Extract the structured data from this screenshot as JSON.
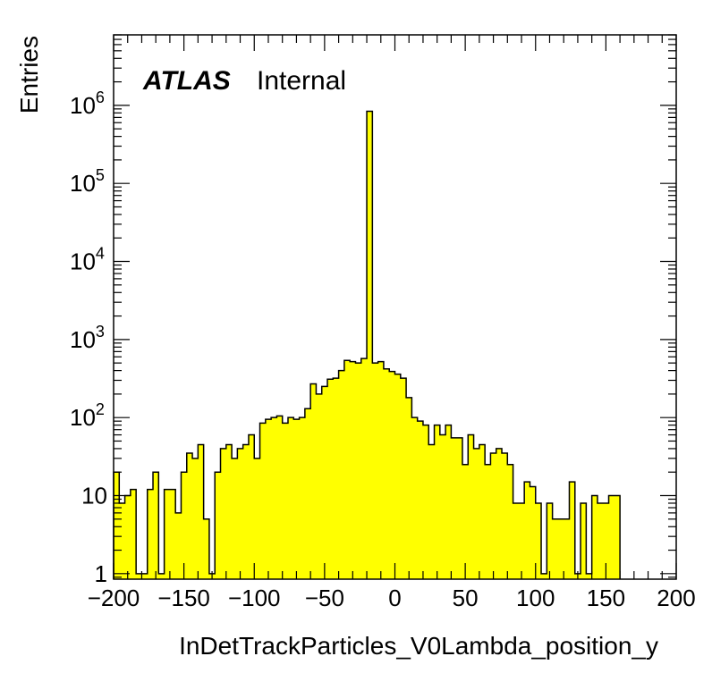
{
  "chart_data": {
    "type": "bar",
    "style": "step-histogram",
    "fill_color": "#ffff00",
    "line_color": "#000000",
    "xlabel": "InDetTrackParticles_V0Lambda_position_y",
    "ylabel": "Entries",
    "xlim": [
      -200,
      200
    ],
    "ylim": [
      0.85,
      8000000
    ],
    "yscale": "log",
    "x_ticks": [
      {
        "value": -200,
        "label": "−200"
      },
      {
        "value": -150,
        "label": "−150"
      },
      {
        "value": -100,
        "label": "−100"
      },
      {
        "value": -50,
        "label": "−50"
      },
      {
        "value": 0,
        "label": "0"
      },
      {
        "value": 50,
        "label": "50"
      },
      {
        "value": 100,
        "label": "100"
      },
      {
        "value": 150,
        "label": "150"
      },
      {
        "value": 200,
        "label": "200"
      }
    ],
    "y_ticks": [
      {
        "value": 1,
        "base": "1",
        "exp": ""
      },
      {
        "value": 10,
        "base": "10",
        "exp": ""
      },
      {
        "value": 100,
        "base": "10",
        "exp": "2"
      },
      {
        "value": 1000,
        "base": "10",
        "exp": "3"
      },
      {
        "value": 10000,
        "base": "10",
        "exp": "4"
      },
      {
        "value": 100000,
        "base": "10",
        "exp": "5"
      },
      {
        "value": 1000000,
        "base": "10",
        "exp": "6"
      }
    ],
    "bin_width": 4,
    "bin_edges_start": -200,
    "values": [
      20,
      8,
      10,
      12,
      1,
      1,
      12,
      20,
      1,
      12,
      12,
      6,
      20,
      35,
      30,
      45,
      5,
      1,
      20,
      40,
      45,
      30,
      40,
      45,
      60,
      30,
      85,
      95,
      100,
      105,
      85,
      100,
      95,
      100,
      130,
      270,
      200,
      250,
      310,
      320,
      400,
      540,
      520,
      500,
      570,
      840000,
      500,
      520,
      420,
      390,
      360,
      320,
      180,
      100,
      90,
      80,
      45,
      80,
      60,
      80,
      55,
      55,
      25,
      60,
      40,
      45,
      25,
      35,
      40,
      35,
      25,
      8,
      8,
      15,
      13,
      8,
      1,
      8,
      5,
      5,
      5,
      15,
      1,
      8,
      1,
      10,
      8,
      8,
      10,
      10
    ],
    "annotation_bold": "ATLAS",
    "annotation_text": "Internal"
  }
}
